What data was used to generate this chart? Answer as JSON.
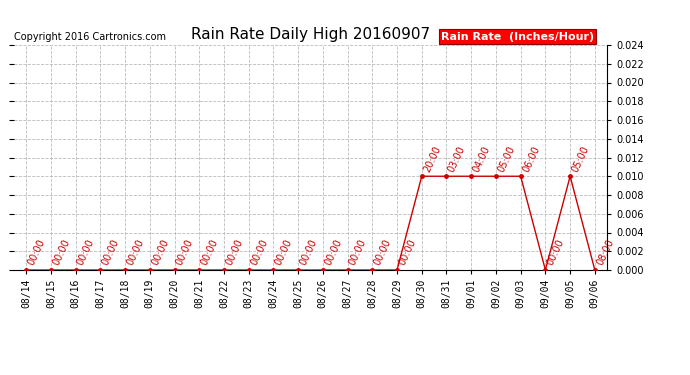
{
  "title": "Rain Rate Daily High 20160907",
  "copyright": "Copyright 2016 Cartronics.com",
  "legend_label": "Rain Rate  (Inches/Hour)",
  "ylim": [
    0,
    0.024
  ],
  "yticks": [
    0.0,
    0.002,
    0.004,
    0.006,
    0.008,
    0.01,
    0.012,
    0.014,
    0.016,
    0.018,
    0.02,
    0.022,
    0.024
  ],
  "background_color": "#ffffff",
  "line_color": "#cc0000",
  "marker_color": "#cc0000",
  "grid_color": "#bbbbbb",
  "dates": [
    "08/14",
    "08/15",
    "08/16",
    "08/17",
    "08/18",
    "08/19",
    "08/20",
    "08/21",
    "08/22",
    "08/23",
    "08/24",
    "08/25",
    "08/26",
    "08/27",
    "08/28",
    "08/29",
    "08/30",
    "08/31",
    "09/01",
    "09/02",
    "09/03",
    "09/04",
    "09/05",
    "09/06"
  ],
  "values": [
    0.0,
    0.0,
    0.0,
    0.0,
    0.0,
    0.0,
    0.0,
    0.0,
    0.0,
    0.0,
    0.0,
    0.0,
    0.0,
    0.0,
    0.0,
    0.0,
    0.01,
    0.01,
    0.01,
    0.01,
    0.01,
    0.0,
    0.01,
    0.0
  ],
  "time_labels": [
    "00:00",
    "00:00",
    "00:00",
    "00:00",
    "00:00",
    "00:00",
    "00:00",
    "00:00",
    "00:00",
    "00:00",
    "00:00",
    "00:00",
    "00:00",
    "00:00",
    "00:00",
    "00:00",
    "20:00",
    "03:00",
    "04:00",
    "05:00",
    "06:00",
    "00:00",
    "05:00",
    "08:00"
  ],
  "title_fontsize": 11,
  "legend_fontsize": 8,
  "copyright_fontsize": 7,
  "tick_fontsize": 7,
  "time_label_fontsize": 7
}
